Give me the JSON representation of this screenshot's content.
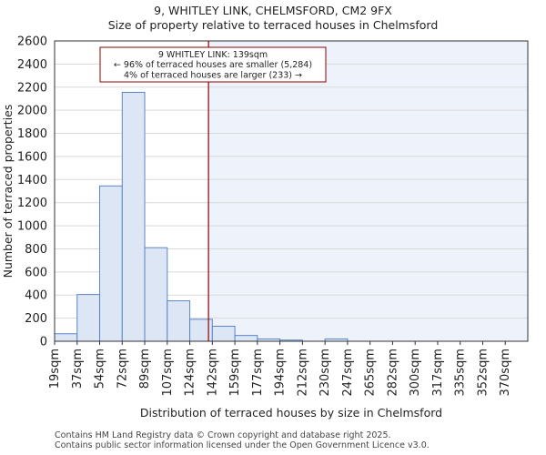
{
  "header": {
    "title": "9, WHITLEY LINK, CHELMSFORD, CM2 9FX",
    "subtitle": "Size of property relative to terraced houses in Chelmsford"
  },
  "chart_data": {
    "type": "bar",
    "title": "9, WHITLEY LINK, CHELMSFORD, CM2 9FX",
    "subtitle": "Size of property relative to terraced houses in Chelmsford",
    "xlabel": "Distribution of terraced houses by size in Chelmsford",
    "ylabel": "Number of terraced properties",
    "ylim": [
      0,
      2600
    ],
    "yticks": [
      0,
      200,
      400,
      600,
      800,
      1000,
      1200,
      1400,
      1600,
      1800,
      2000,
      2200,
      2400,
      2600
    ],
    "categories": [
      "19sqm",
      "37sqm",
      "54sqm",
      "72sqm",
      "89sqm",
      "107sqm",
      "124sqm",
      "142sqm",
      "159sqm",
      "177sqm",
      "194sqm",
      "212sqm",
      "230sqm",
      "247sqm",
      "265sqm",
      "282sqm",
      "300sqm",
      "317sqm",
      "335sqm",
      "352sqm",
      "370sqm"
    ],
    "values": [
      65,
      405,
      1345,
      2155,
      810,
      350,
      190,
      130,
      50,
      20,
      10,
      0,
      20,
      0,
      0,
      0,
      0,
      0,
      0,
      0,
      0
    ],
    "marker": {
      "value_sqm": 139,
      "position_index": 6.83,
      "line_color": "#8b0000",
      "annotation": [
        "9 WHITLEY LINK: 139sqm",
        "← 96% of terraced houses are smaller (5,284)",
        "4% of terraced houses are larger (233) →"
      ]
    },
    "colors": {
      "bar_fill": "#dce6f5",
      "bar_stroke": "#5a86c5",
      "shade": "#eef2fb"
    }
  },
  "footer": {
    "line1": "Contains HM Land Registry data © Crown copyright and database right 2025.",
    "line2": "Contains public sector information licensed under the Open Government Licence v3.0."
  }
}
